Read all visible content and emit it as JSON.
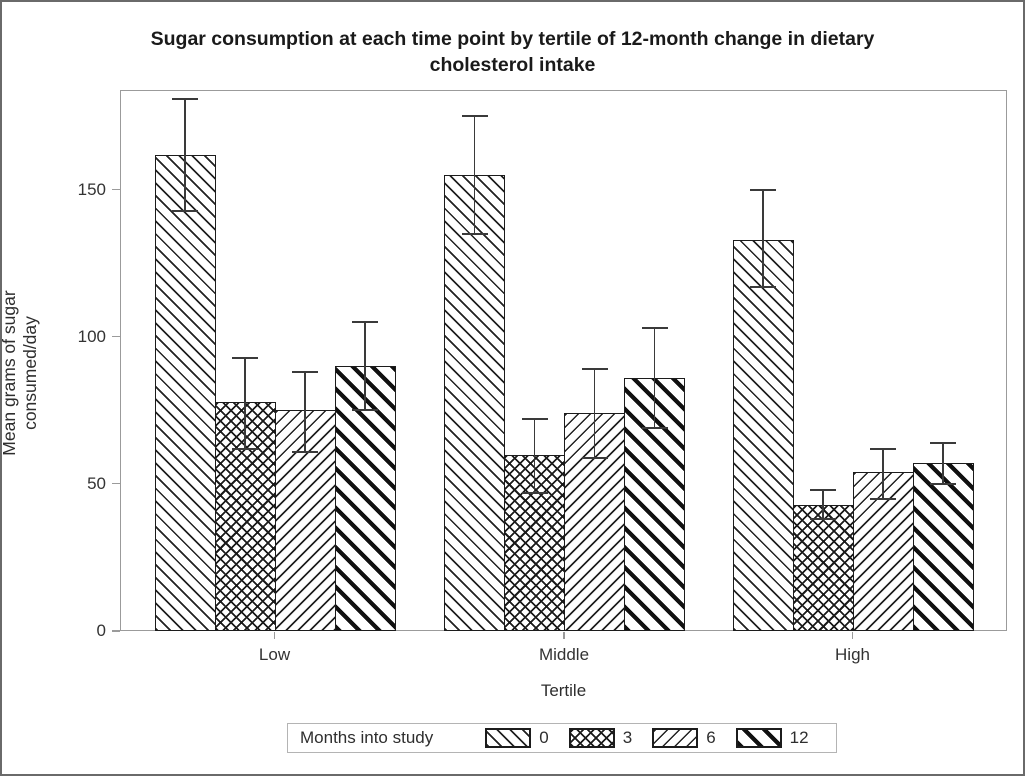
{
  "chart_data": {
    "type": "bar",
    "title": "Sugar consumption at each time point by tertile of 12-month change in dietary cholesterol intake",
    "xlabel": "Tertile",
    "ylabel": "Mean grams of sugar consumed/day",
    "categories": [
      "Low",
      "Middle",
      "High"
    ],
    "yticks": [
      0,
      50,
      100,
      150
    ],
    "ylim": [
      0,
      184
    ],
    "grid": false,
    "legend_title": "Months into study",
    "legend_position": "bottom-center",
    "error_bars": "95% confidence interval caps shown on every bar",
    "bar_style": "monochrome black-and-white hatch patterns on white fill",
    "series": [
      {
        "name": "0",
        "pattern": "backslash-thin",
        "values": [
          162,
          155,
          133
        ],
        "error_low": [
          143,
          135,
          117
        ],
        "error_high": [
          181,
          175,
          150
        ]
      },
      {
        "name": "3",
        "pattern": "crosshatch",
        "values": [
          78,
          60,
          43
        ],
        "error_low": [
          62,
          47,
          38
        ],
        "error_high": [
          93,
          72,
          48
        ]
      },
      {
        "name": "6",
        "pattern": "forward-slash-thin",
        "values": [
          75,
          74,
          54
        ],
        "error_low": [
          61,
          59,
          45
        ],
        "error_high": [
          88,
          89,
          62
        ]
      },
      {
        "name": "12",
        "pattern": "backslash-bold",
        "values": [
          90,
          86,
          57
        ],
        "error_low": [
          75,
          69,
          50
        ],
        "error_high": [
          105,
          103,
          64
        ]
      }
    ],
    "colors": {
      "bar_line": "#1c1c1c",
      "axis_line": "#9b9b9b",
      "tick_text": "#333333",
      "title_text": "#1a1a1a",
      "error_bar": "#3a3a3a",
      "figure_border": "#6a6a6a",
      "legend_border": "#b4b4b4",
      "background": "#ffffff"
    }
  }
}
